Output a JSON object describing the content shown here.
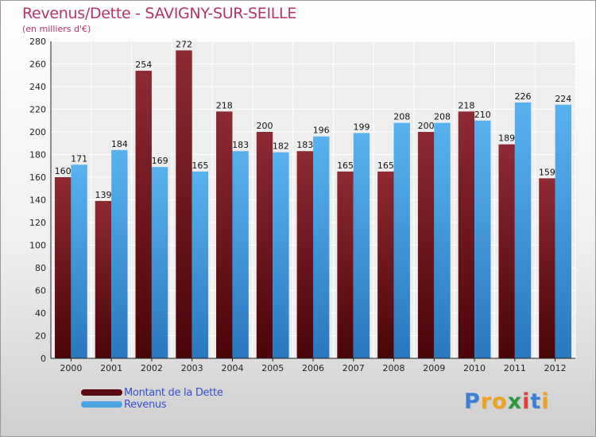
{
  "title": "Revenus/Dette - SAVIGNY-SUR-SEILLE",
  "subtitle": "(en milliers d'€)",
  "legend": {
    "dette": "Montant de la Dette",
    "revenus": "Revenus"
  },
  "logo": {
    "p": "P",
    "r": "r",
    "o": "o",
    "x": "x",
    "i1": "i",
    "t": "t",
    "i2": "i"
  },
  "colors": {
    "title": "#b8336a",
    "dette": "#7a1a22",
    "revenus": "#4aa3e2",
    "legend_text": "#3a4fd0"
  },
  "chart_data": {
    "type": "bar",
    "title": "Revenus/Dette - SAVIGNY-SUR-SEILLE",
    "ylabel": "(en milliers d'€)",
    "xlabel": "",
    "categories": [
      "2000",
      "2001",
      "2002",
      "2003",
      "2004",
      "2005",
      "2006",
      "2007",
      "2008",
      "2009",
      "2010",
      "2011",
      "2012"
    ],
    "series": [
      {
        "name": "Montant de la Dette",
        "values": [
          160,
          139,
          254,
          272,
          218,
          200,
          183,
          165,
          165,
          200,
          218,
          189,
          159
        ]
      },
      {
        "name": "Revenus",
        "values": [
          171,
          184,
          169,
          165,
          183,
          182,
          196,
          199,
          208,
          208,
          210,
          226,
          224
        ]
      }
    ],
    "ylim": [
      0,
      280
    ],
    "yticks": [
      0,
      20,
      40,
      60,
      80,
      100,
      120,
      140,
      160,
      180,
      200,
      220,
      240,
      260,
      280
    ],
    "grid": true,
    "legend_position": "bottom-left"
  }
}
